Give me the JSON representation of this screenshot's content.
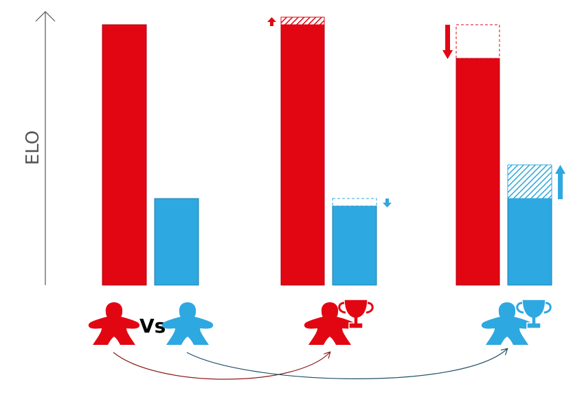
{
  "axis": {
    "label": "ELO"
  },
  "versus_label": "Vs",
  "colors": {
    "red": "#E20613",
    "blue": "#2EA8E0",
    "dark_red_arrow": "#8B1A1A",
    "dark_blue_arrow": "#1F4E66",
    "axis": "#555555"
  },
  "scenarios": [
    {
      "name": "before-match",
      "red_elo": 1,
      "blue_elo": 0.34,
      "winner": null
    },
    {
      "name": "red-wins",
      "red_elo": 1.03,
      "blue_elo": 0.31,
      "change": "small",
      "winner": "red"
    },
    {
      "name": "blue-wins",
      "red_elo": 0.87,
      "blue_elo": 0.47,
      "change": "large",
      "winner": "blue"
    }
  ],
  "icons": [
    "meeple-icon",
    "trophy-icon",
    "arrow-up-icon",
    "arrow-down-icon"
  ]
}
